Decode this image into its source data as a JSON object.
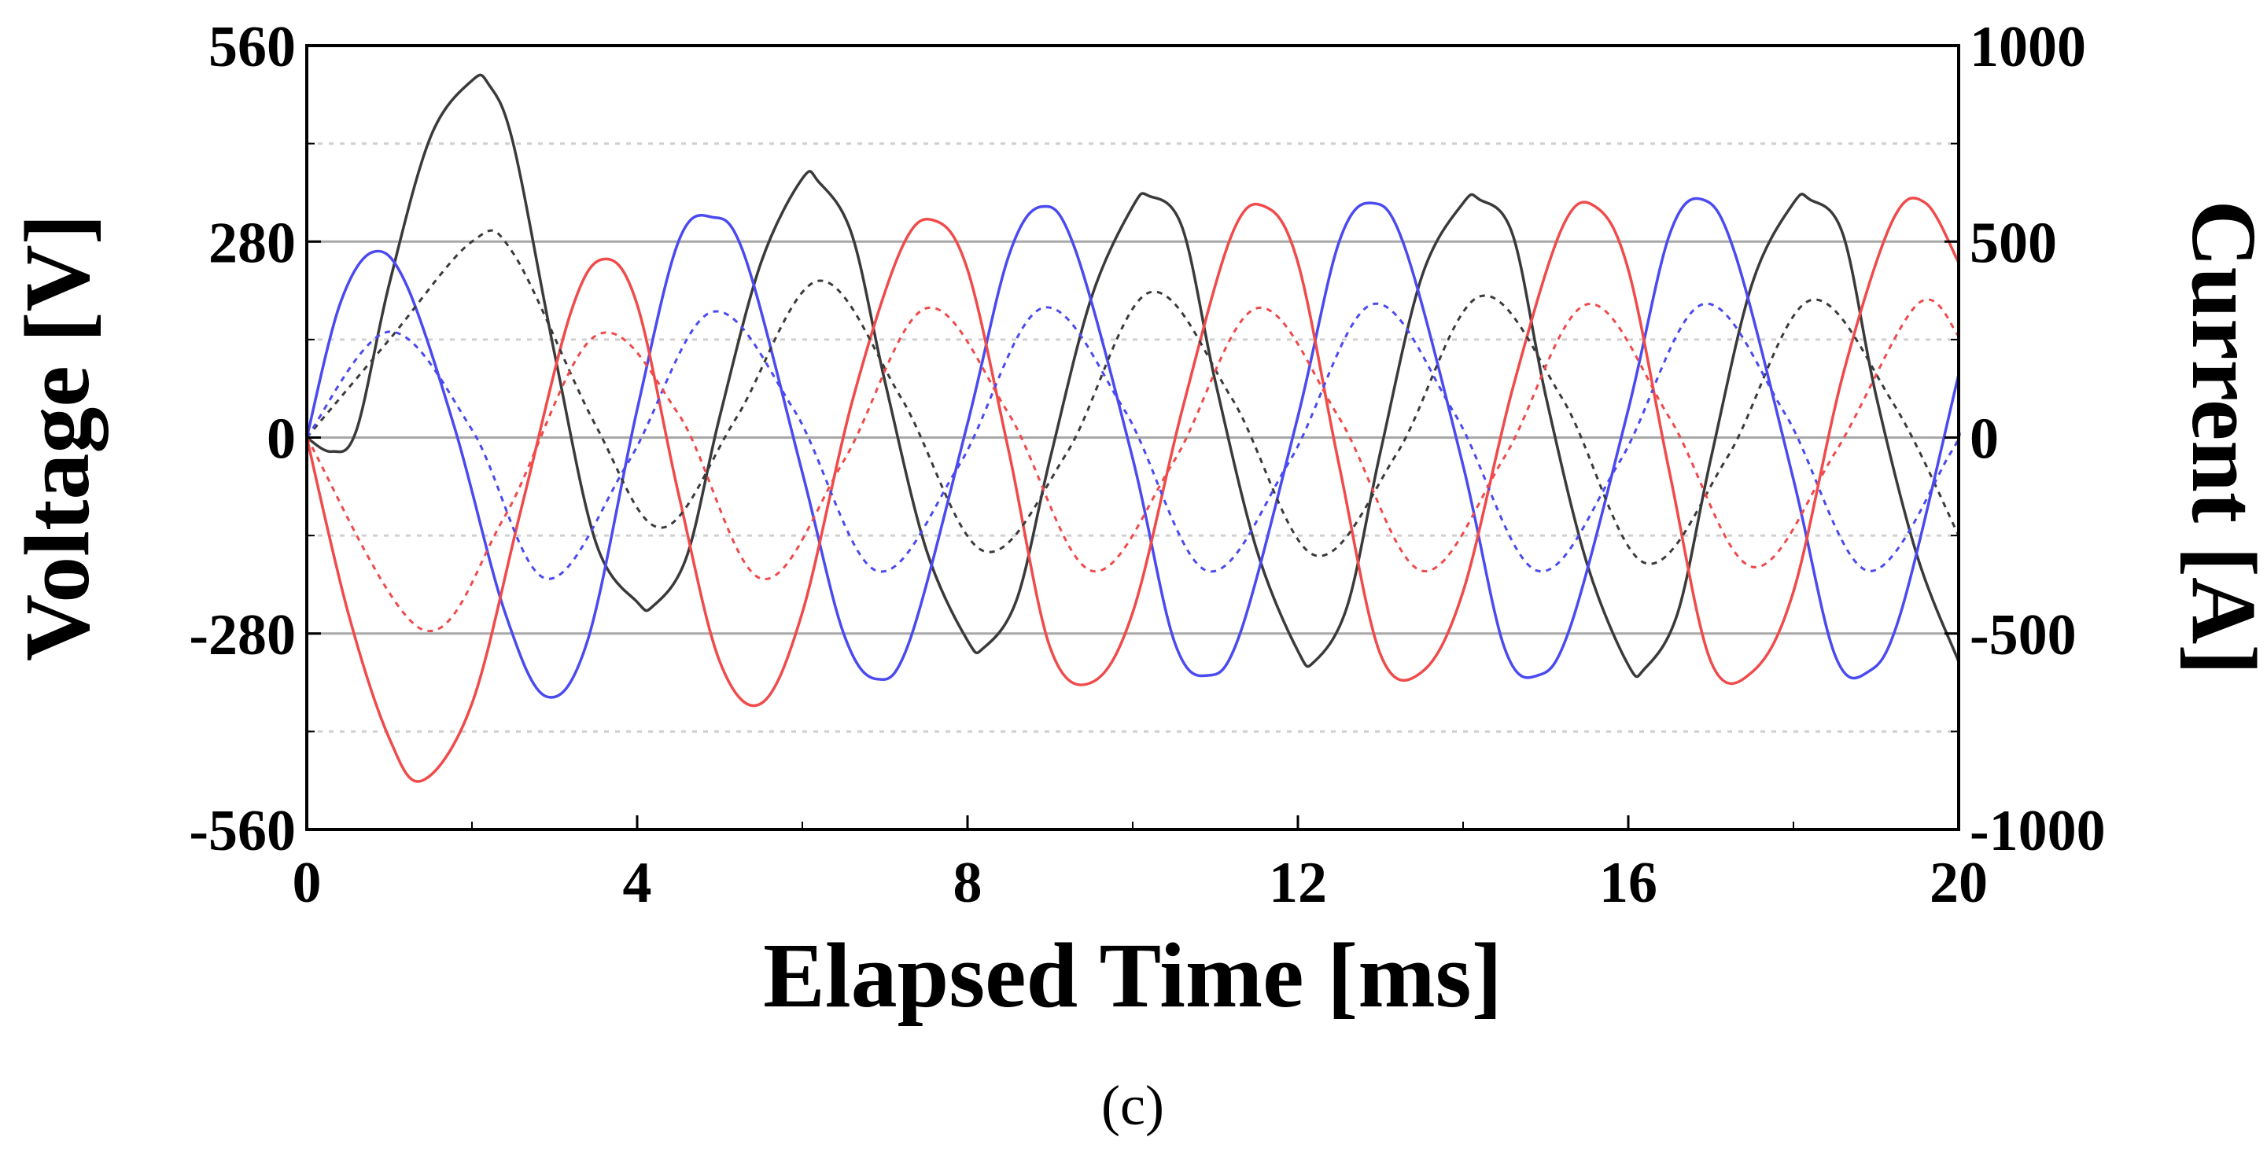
{
  "chart_data": {
    "type": "line",
    "title": "",
    "caption": "(c)",
    "xlabel": "Elapsed Time [ms]",
    "ylabel_left": "Voltage [V]",
    "ylabel_right": "Current [A]",
    "xlim": [
      0,
      20
    ],
    "ylim_left": [
      -560,
      560
    ],
    "ylim_right": [
      -1000,
      1000
    ],
    "x_ticks": [
      "0",
      "4",
      "8",
      "12",
      "16",
      "20"
    ],
    "y_ticks_left": [
      "560",
      "280",
      "0",
      "-280",
      "-560"
    ],
    "y_ticks_right": [
      "1000",
      "500",
      "0",
      "-500",
      "-1000"
    ],
    "grid": "horizontal",
    "legend": "none",
    "series": [
      {
        "axis": "left",
        "style": "solid",
        "color": "#3a3a3a",
        "x": [
          0,
          0.3,
          0.6,
          1,
          1.5,
          2,
          2.2,
          2.5,
          3,
          3.5,
          4,
          4.2,
          4.6,
          5,
          5.5,
          6,
          6.2,
          6.6,
          7,
          7.5,
          8,
          8.2,
          8.6,
          9,
          9.5,
          10,
          10.2,
          10.6,
          11,
          11.5,
          12,
          12.2,
          12.6,
          13,
          13.5,
          14,
          14.2,
          14.6,
          15,
          15.5,
          16,
          16.2,
          16.6,
          17,
          17.5,
          18,
          18.2,
          18.6,
          19,
          19.5,
          20
        ],
        "y": [
          0,
          -20,
          10,
          220,
          430,
          510,
          505,
          420,
          120,
          -150,
          -235,
          -240,
          -170,
          30,
          250,
          370,
          365,
          290,
          80,
          -160,
          -290,
          -300,
          -230,
          -30,
          200,
          330,
          345,
          300,
          80,
          -160,
          -305,
          -320,
          -240,
          -20,
          230,
          335,
          340,
          290,
          60,
          -180,
          -325,
          -330,
          -250,
          -30,
          220,
          335,
          340,
          290,
          60,
          -170,
          -320
        ]
      },
      {
        "axis": "left",
        "style": "solid",
        "color": "#4a4af0",
        "x": [
          0,
          0.4,
          0.8,
          1.2,
          1.8,
          2.4,
          2.9,
          3.4,
          4,
          4.5,
          4.9,
          5.3,
          6,
          6.5,
          6.9,
          7.3,
          8,
          8.5,
          8.9,
          9.3,
          10,
          10.5,
          10.9,
          11.3,
          12,
          12.5,
          12.9,
          13.3,
          14,
          14.5,
          14.9,
          15.3,
          16,
          16.5,
          16.9,
          17.3,
          18,
          18.5,
          18.9,
          19.3,
          20
        ],
        "y": [
          0,
          190,
          265,
          220,
          10,
          -250,
          -370,
          -290,
          40,
          280,
          315,
          260,
          -50,
          -280,
          -345,
          -290,
          20,
          260,
          330,
          270,
          -30,
          -290,
          -340,
          -280,
          30,
          280,
          335,
          270,
          -40,
          -300,
          -340,
          -270,
          40,
          290,
          340,
          260,
          -60,
          -310,
          -335,
          -250,
          90
        ]
      },
      {
        "axis": "left",
        "style": "solid",
        "color": "#f04a4a",
        "x": [
          0,
          0.5,
          1,
          1.4,
          2,
          2.6,
          3.2,
          3.6,
          4,
          4.5,
          5,
          5.5,
          6,
          6.6,
          7.2,
          7.6,
          8,
          8.5,
          9,
          9.5,
          10,
          10.6,
          11.2,
          11.6,
          12,
          12.5,
          13,
          13.5,
          14,
          14.6,
          15.2,
          15.6,
          16,
          16.5,
          17,
          17.5,
          18,
          18.6,
          19.2,
          19.6,
          20
        ],
        "y": [
          0,
          -250,
          -430,
          -490,
          -380,
          -100,
          180,
          255,
          190,
          -80,
          -320,
          -380,
          -250,
          50,
          270,
          310,
          240,
          -20,
          -300,
          -350,
          -250,
          40,
          290,
          330,
          250,
          -40,
          -310,
          -335,
          -220,
          70,
          300,
          330,
          240,
          -50,
          -320,
          -335,
          -220,
          90,
          310,
          335,
          250
        ]
      },
      {
        "axis": "right",
        "style": "dashed",
        "color": "#3a3a3a",
        "x": [
          0,
          1,
          2,
          2.5,
          3.5,
          4.3,
          5.2,
          6.2,
          7.2,
          8.2,
          9.2,
          10.2,
          11.2,
          12.2,
          13.2,
          14.2,
          15.2,
          16.2,
          17.2,
          18.2,
          19.2,
          20
        ],
        "y": [
          0,
          250,
          500,
          470,
          30,
          -230,
          50,
          400,
          100,
          -290,
          -40,
          370,
          100,
          -300,
          -40,
          360,
          100,
          -320,
          -50,
          350,
          90,
          -250
        ]
      },
      {
        "axis": "right",
        "style": "dashed",
        "color": "#4a4af0",
        "x": [
          0,
          1,
          2,
          2.9,
          3.9,
          4.9,
          5.9,
          6.9,
          7.9,
          8.9,
          9.9,
          10.9,
          11.9,
          12.9,
          13.9,
          14.9,
          15.9,
          16.9,
          17.9,
          18.9,
          19.9,
          20
        ],
        "y": [
          0,
          270,
          20,
          -360,
          -60,
          320,
          70,
          -340,
          -70,
          330,
          70,
          -340,
          -60,
          340,
          60,
          -340,
          -60,
          340,
          60,
          -340,
          -40,
          20
        ]
      },
      {
        "axis": "right",
        "style": "dashed",
        "color": "#f04a4a",
        "x": [
          0,
          1.4,
          2.4,
          3.5,
          4.5,
          5.5,
          6.5,
          7.5,
          8.5,
          9.5,
          10.5,
          11.5,
          12.5,
          13.5,
          14.5,
          15.5,
          16.5,
          17.5,
          18.5,
          19.5,
          20
        ],
        "y": [
          0,
          -490,
          -200,
          260,
          60,
          -360,
          -60,
          330,
          60,
          -340,
          -60,
          330,
          50,
          -340,
          -50,
          340,
          50,
          -330,
          -40,
          340,
          260
        ]
      }
    ]
  }
}
